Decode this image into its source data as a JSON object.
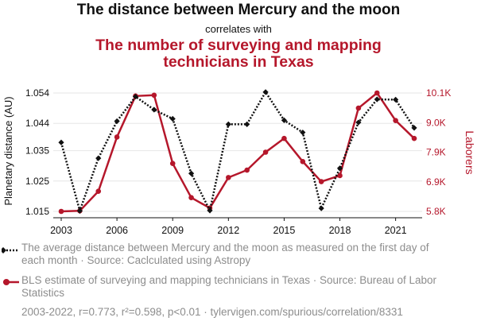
{
  "header": {
    "title": "The distance between Mercury and the moon",
    "connector": "correlates with",
    "subtitle": "The number of surveying and mapping technicians in Texas"
  },
  "chart_data": {
    "type": "line",
    "x": [
      2003,
      2004,
      2005,
      2006,
      2007,
      2008,
      2009,
      2010,
      2011,
      2012,
      2013,
      2014,
      2015,
      2016,
      2017,
      2018,
      2019,
      2020,
      2021,
      2022
    ],
    "x_ticks": [
      "2003",
      "2006",
      "2009",
      "2012",
      "2015",
      "2018",
      "2021"
    ],
    "y_left": {
      "label": "Planetary distance (AU)",
      "ticks": [
        "1.015",
        "1.025",
        "1.035",
        "1.044",
        "1.054"
      ],
      "range": [
        1.014,
        1.055
      ]
    },
    "y_right": {
      "label": "Laborers",
      "ticks": [
        "5.8K",
        "6.9K",
        "7.9K",
        "9.0K",
        "10.1K"
      ],
      "range": [
        5.8,
        10.1
      ]
    },
    "series": [
      {
        "axis": "left",
        "color": "#111111",
        "style": "dotted",
        "marker": "diamond",
        "values": [
          1.0377,
          1.0152,
          1.0325,
          1.0447,
          1.0528,
          1.0485,
          1.0455,
          1.0275,
          1.0153,
          1.0437,
          1.0437,
          1.0543,
          1.045,
          1.041,
          1.016,
          1.0292,
          1.0443,
          1.0519,
          1.0518,
          1.0425
        ]
      },
      {
        "axis": "right",
        "color": "#b5172b",
        "style": "solid",
        "marker": "circle",
        "values": [
          5.8,
          5.82,
          6.53,
          8.5,
          9.99,
          10.02,
          7.54,
          6.3,
          5.92,
          7.03,
          7.3,
          7.95,
          8.45,
          7.61,
          6.88,
          7.1,
          9.55,
          10.1,
          9.1,
          8.45
        ]
      }
    ]
  },
  "legend": {
    "series1_text": "The average distance between Mercury and the moon as measured on the first day of each month · Source: Caclculated using Astropy",
    "series2_text": "BLS estimate of surveying and mapping technicians in Texas · Source: Bureau of Labor Statistics"
  },
  "footer": {
    "stats": "2003-2022, r=0.773, r²=0.598, p<0.01 · tylervigen.com/spurious/correlation/8331"
  }
}
